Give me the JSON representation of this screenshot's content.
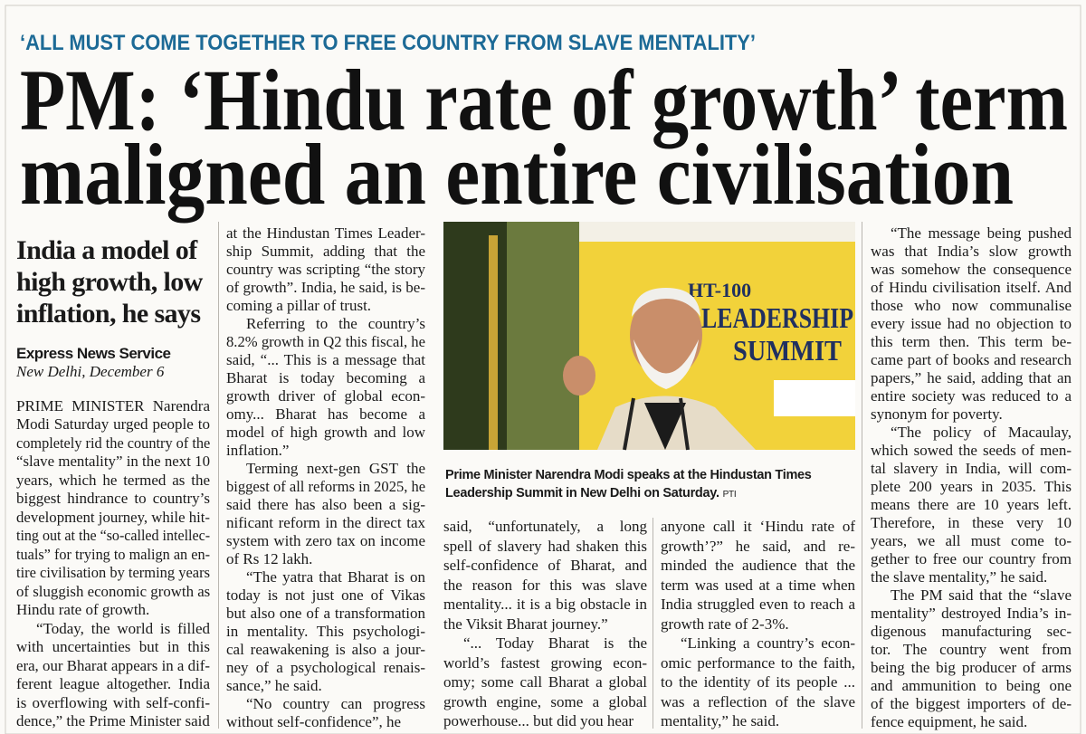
{
  "kicker": "‘ALL MUST COME TOGETHER TO FREE COUNTRY FROM SLAVE MENTALITY’",
  "headline": [
    "PM: ‘Hindu rate of growth’ term",
    "maligned an entire civilisation"
  ],
  "subhead": [
    "India a model of",
    "high growth, low",
    "inflation, he says"
  ],
  "byline": "Express News Service",
  "dateline": "New Delhi, December 6",
  "photo": {
    "sign": [
      "HT-100",
      "LEADERSHIP",
      "SUMMIT"
    ]
  },
  "caption": {
    "lines": [
      "Prime Minister Narendra Modi speaks at the Hindustan Times",
      "Leadership Summit in New Delhi on Saturday."
    ],
    "credit": "PTI"
  },
  "columns": [
    [
      [
        "PRIME MINISTER Narendra",
        "Modi Saturday urged people to",
        "completely rid the country of the",
        "“slave mentality” in the next 10",
        "years, which he termed as the",
        "biggest hindrance to country’s",
        "development journey, while hit-",
        "ting out at the “so-called intellec-",
        "tuals” for trying to malign an en-",
        "tire civilisation by terming years",
        "of sluggish economic growth as",
        "Hindu rate of growth."
      ],
      [
        "“Today, the world is filled",
        "with uncertainties but in this",
        "era, our Bharat appears in a dif-",
        "ferent league altogether. India",
        "is overflowing with self-confi-",
        "dence,” the Prime Minister said"
      ]
    ],
    [
      [
        "at the Hindustan Times Leader-",
        "ship Summit, adding that the",
        "country was scripting “the story",
        "of growth”. India, he said, is be-",
        "coming a pillar of trust."
      ],
      [
        "Referring to the country’s",
        "8.2% growth in Q2 this fiscal, he",
        "said, “... This is a message that",
        "Bharat is today becoming a",
        "growth driver of global econ-",
        "omy... Bharat has become a",
        "model of high growth and low",
        "inflation.”"
      ],
      [
        "Terming next-gen GST the",
        "biggest of all reforms in 2025, he",
        "said there has also been a sig-",
        "nificant reform in the direct tax",
        "system with zero tax on income",
        "of Rs 12 lakh."
      ],
      [
        "“The yatra that Bharat is on",
        "today is not just one of Vikas",
        "but also one of a transformation",
        "in mentality. This psychologi-",
        "cal reawakening is also a jour-",
        "ney of a psychological renais-",
        "sance,” he said."
      ],
      [
        "“No country can progress",
        "without self-confidence”, he"
      ]
    ],
    [
      [
        "said, “unfortunately, a long",
        "spell of slavery had shaken this",
        "self-confidence of Bharat, and",
        "the reason for this was slave",
        "mentality... it is a big obstacle in",
        "the Viksit Bharat journey.”"
      ],
      [
        "“... Today Bharat is the",
        "world’s fastest growing econ-",
        "omy; some call Bharat a global",
        "growth engine, some a global",
        "powerhouse... but did you hear"
      ]
    ],
    [
      [
        "anyone call it ‘Hindu rate of",
        "growth’?” he said, and re-",
        "minded the audience that the",
        "term was used at a time when",
        "India struggled even to reach a",
        "growth rate of 2-3%."
      ],
      [
        "“Linking a country’s econ-",
        "omic performance to the faith,",
        "to the identity of its people ...",
        "was a reflection of the slave",
        "mentality,” he said."
      ]
    ],
    [
      [
        "“The message being pushed",
        "was that India’s slow growth",
        "was somehow the consequence",
        "of Hindu civilisation itself. And",
        "those who now communalise",
        "every issue had no objection to",
        "this term then. This term be-",
        "came part of books and research",
        "papers,” he said, adding that an",
        "entire society was reduced to a",
        "synonym for poverty."
      ],
      [
        "“The policy of Macaulay,",
        "which sowed the seeds of men-",
        "tal slavery in India, will com-",
        "plete 200 years in 2035. This",
        "means there are 10 years left.",
        "Therefore, in these very 10",
        "years, we all must come to-",
        "gether to free our country from",
        "the slave mentality,” he said."
      ],
      [
        "The PM said that the “slave",
        "mentality” destroyed India’s in-",
        "digenous manufacturing sec-",
        "tor. The country went from",
        "being the big producer of arms",
        "and ammunition to being one",
        "of the biggest importers of de-",
        "fence equipment, he said."
      ]
    ]
  ]
}
